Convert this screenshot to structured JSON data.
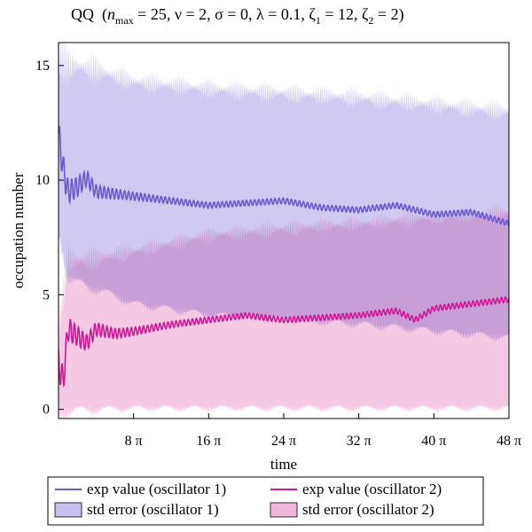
{
  "chart_data": {
    "type": "area",
    "title": {
      "prefix": "QQ",
      "parts": [
        {
          "t": "(",
          "s": "n"
        },
        {
          "t": "n",
          "s": "i"
        },
        {
          "t": "max",
          "s": "sub"
        },
        {
          "t": " = 25, ν = 2, σ = 0, λ = 0.1, ζ",
          "s": "n"
        },
        {
          "t": "1",
          "s": "sub"
        },
        {
          "t": " = 12, ζ",
          "s": "n"
        },
        {
          "t": "2",
          "s": "sub"
        },
        {
          "t": " = 2)",
          "s": "n"
        }
      ]
    },
    "xlabel": "time",
    "ylabel": "occupation number",
    "xlim": [
      0,
      48
    ],
    "ylim": [
      -0.4,
      16
    ],
    "x_unit": "π",
    "x_ticks": [
      {
        "value": 8,
        "label": "8 π"
      },
      {
        "value": 16,
        "label": "16 π"
      },
      {
        "value": 24,
        "label": "24 π"
      },
      {
        "value": 32,
        "label": "32 π"
      },
      {
        "value": 40,
        "label": "40 π"
      },
      {
        "value": 48,
        "label": "48 π"
      }
    ],
    "y_ticks": [
      {
        "value": 0,
        "label": "0"
      },
      {
        "value": 5,
        "label": "5"
      },
      {
        "value": 10,
        "label": "10"
      },
      {
        "value": 15,
        "label": "15"
      }
    ],
    "series": [
      {
        "name": "exp value (oscillator 1)",
        "kind": "line",
        "color": "#6a5acd",
        "x": [
          0,
          0.5,
          1,
          2,
          3,
          4,
          6,
          8,
          12,
          16,
          20,
          24,
          28,
          32,
          36,
          40,
          44,
          48
        ],
        "values": [
          12,
          10.5,
          9.5,
          9.7,
          10.1,
          9.5,
          9.4,
          9.3,
          9.1,
          8.9,
          9.0,
          9.1,
          8.8,
          8.7,
          8.9,
          8.5,
          8.6,
          8.1
        ]
      },
      {
        "name": "exp value (oscillator 2)",
        "kind": "line",
        "color": "#d01894",
        "x": [
          0,
          0.5,
          1,
          2,
          3,
          4,
          6,
          8,
          12,
          16,
          20,
          24,
          28,
          32,
          36,
          38,
          40,
          44,
          48
        ],
        "values": [
          2,
          1.2,
          3.5,
          3.2,
          2.9,
          3.5,
          3.3,
          3.4,
          3.7,
          3.9,
          4.1,
          3.9,
          4.0,
          4.1,
          4.3,
          3.9,
          4.4,
          4.6,
          4.8
        ]
      },
      {
        "name": "std error (oscillator 1)",
        "kind": "band",
        "color": "#c8c0ee",
        "x": [
          0,
          1,
          2,
          4,
          8,
          16,
          24,
          32,
          40,
          48
        ],
        "upper": [
          15.2,
          15.0,
          15.0,
          14.8,
          14.3,
          14.0,
          13.8,
          13.6,
          13.3,
          13.0
        ],
        "lower": [
          8.2,
          6.2,
          5.8,
          5.5,
          4.8,
          4.3,
          4.1,
          3.9,
          3.6,
          3.3
        ]
      },
      {
        "name": "std error (oscillator 2)",
        "kind": "band",
        "color": "#f2b6da",
        "x": [
          0,
          1,
          2,
          4,
          8,
          16,
          24,
          32,
          40,
          48
        ],
        "upper": [
          3.5,
          6.5,
          6.5,
          6.6,
          6.9,
          7.6,
          7.9,
          8.1,
          8.4,
          8.6
        ],
        "lower": [
          0.2,
          0.2,
          0.2,
          0.2,
          0.2,
          0.2,
          0.2,
          0.2,
          0.2,
          0.2
        ]
      }
    ],
    "legend": {
      "position": "bottom",
      "items": [
        {
          "label": "exp value (oscillator 1)",
          "kind": "line",
          "color": "#6a5acd"
        },
        {
          "label": "exp value (oscillator 2)",
          "kind": "line",
          "color": "#d01894"
        },
        {
          "label": "std error (oscillator 1)",
          "kind": "box",
          "color": "#c8c0ee"
        },
        {
          "label": "std error (oscillator 2)",
          "kind": "box",
          "color": "#f2b6da"
        }
      ]
    }
  }
}
